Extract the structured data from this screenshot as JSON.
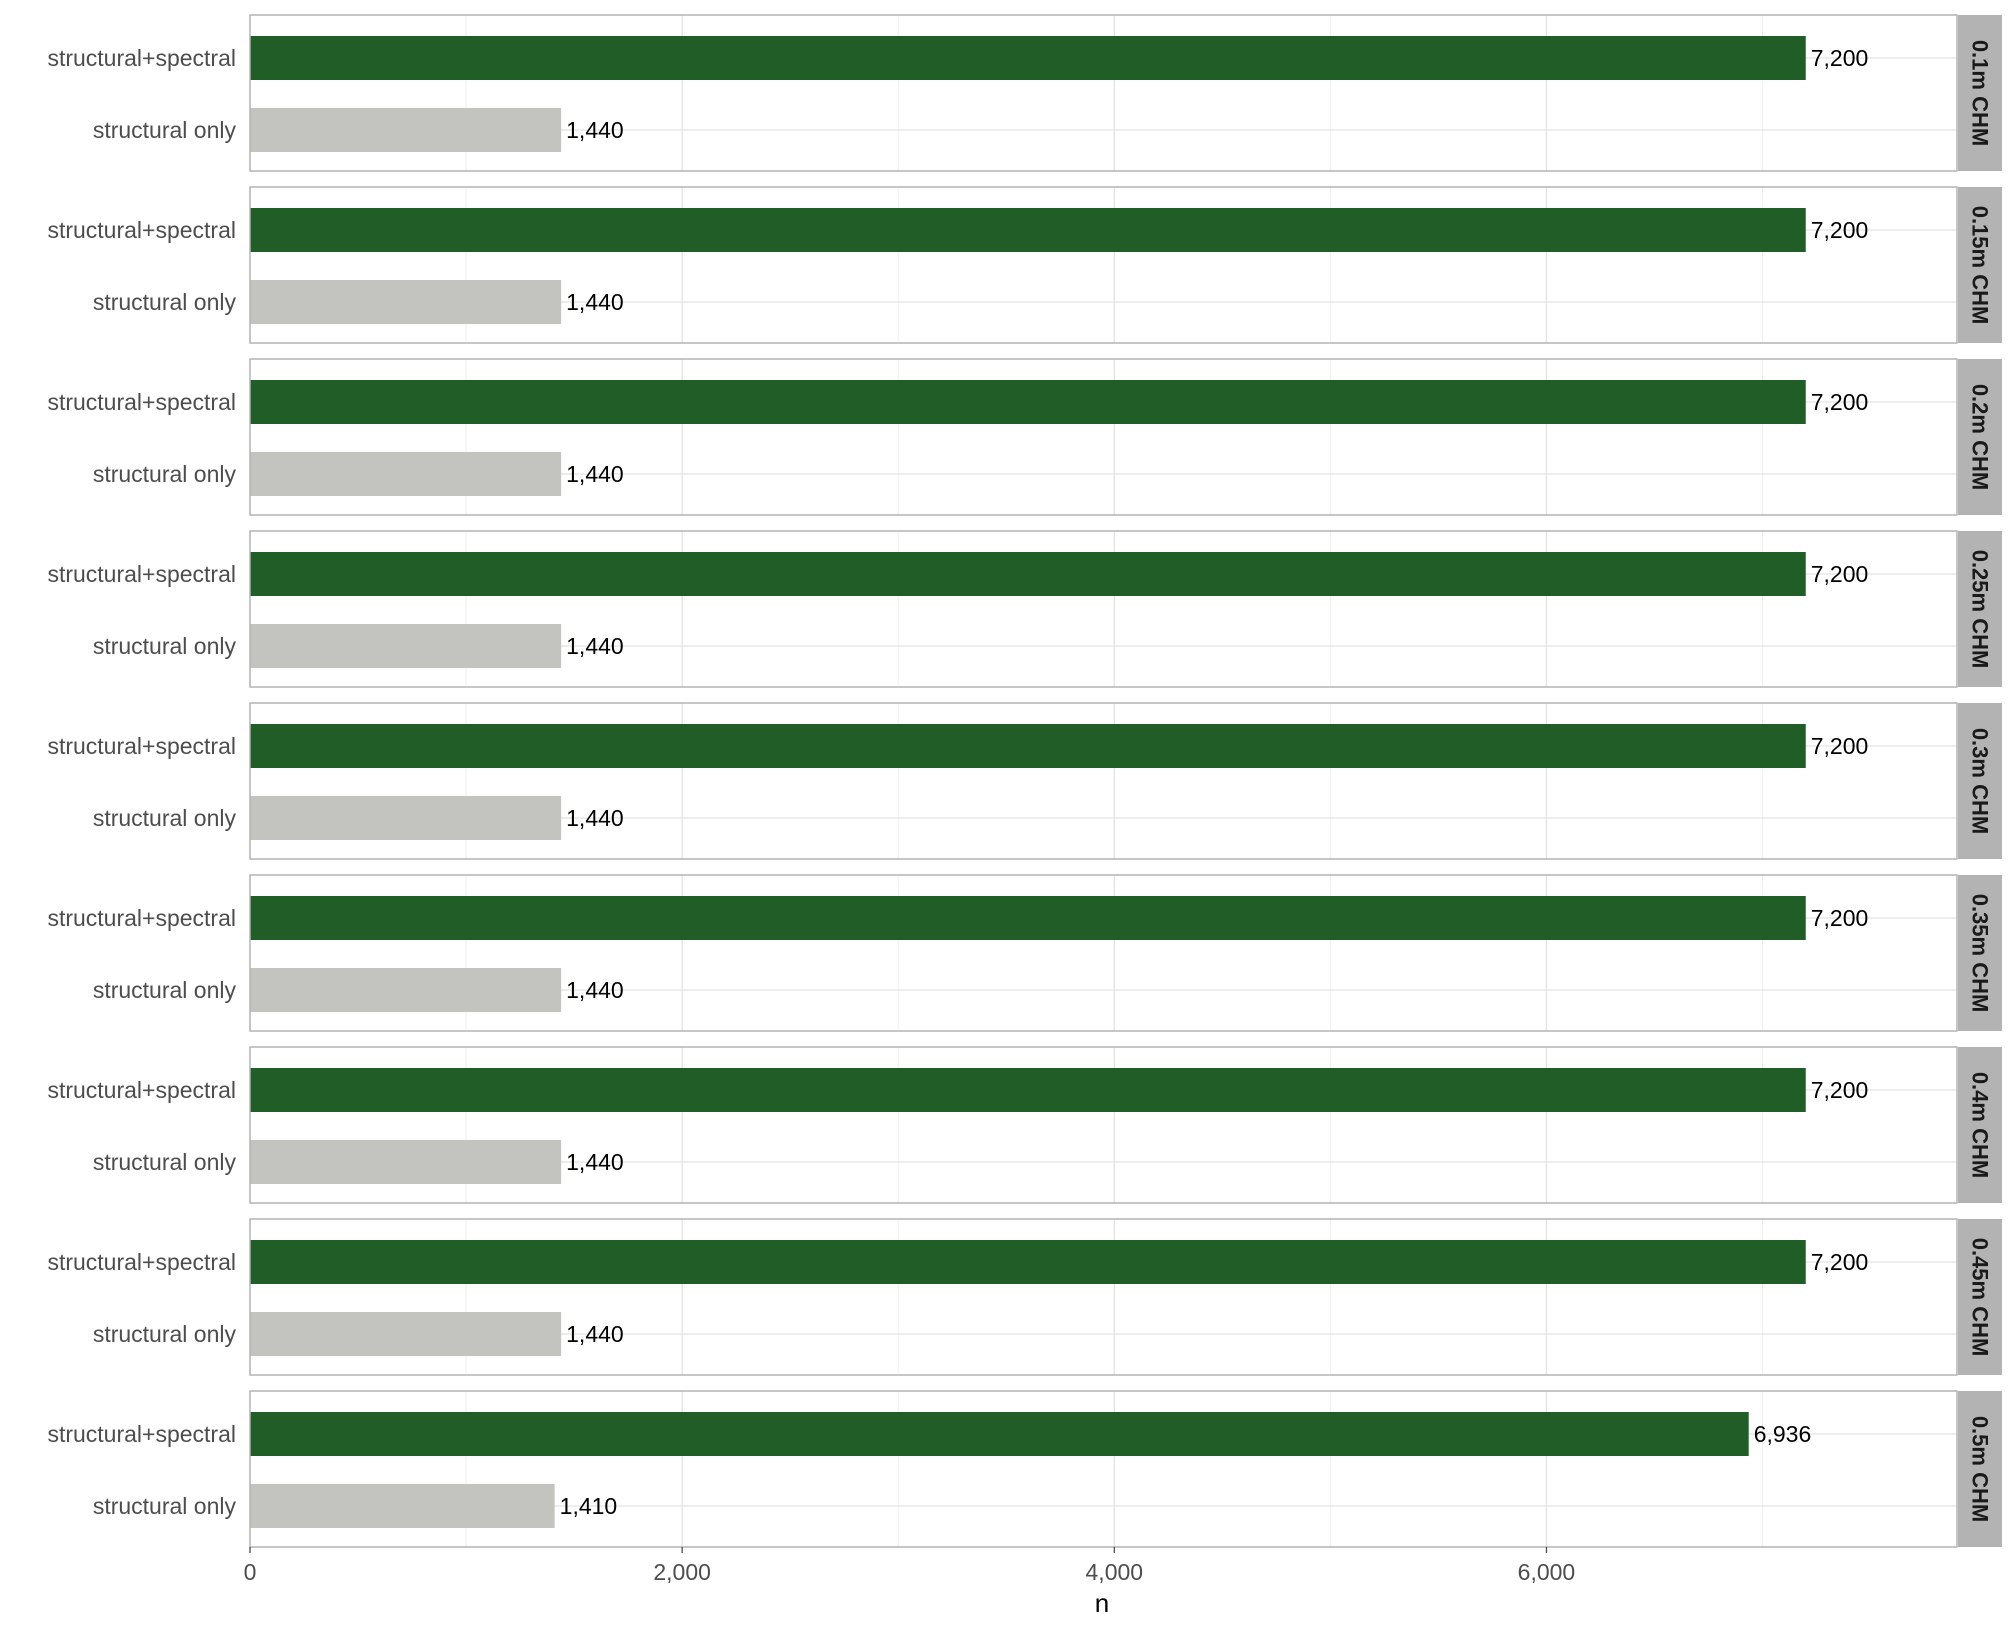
{
  "chart_data": {
    "type": "bar",
    "orientation": "horizontal",
    "xlabel": "n",
    "ylabel": "",
    "xlim": [
      0,
      7900
    ],
    "x_ticks": [
      0,
      2000,
      4000,
      6000
    ],
    "x_tick_labels": [
      "0",
      "2,000",
      "4,000",
      "6,000"
    ],
    "grid": true,
    "categories": [
      "structural+spectral",
      "structural only"
    ],
    "colors": {
      "structural+spectral": "#215e27",
      "structural only": "#c3c4c0"
    },
    "facets": [
      {
        "label": "0.1m CHM",
        "values": [
          7200,
          1440
        ],
        "value_labels": [
          "7,200",
          "1,440"
        ]
      },
      {
        "label": "0.15m CHM",
        "values": [
          7200,
          1440
        ],
        "value_labels": [
          "7,200",
          "1,440"
        ]
      },
      {
        "label": "0.2m CHM",
        "values": [
          7200,
          1440
        ],
        "value_labels": [
          "7,200",
          "1,440"
        ]
      },
      {
        "label": "0.25m CHM",
        "values": [
          7200,
          1440
        ],
        "value_labels": [
          "7,200",
          "1,440"
        ]
      },
      {
        "label": "0.3m CHM",
        "values": [
          7200,
          1440
        ],
        "value_labels": [
          "7,200",
          "1,440"
        ]
      },
      {
        "label": "0.35m CHM",
        "values": [
          7200,
          1440
        ],
        "value_labels": [
          "7,200",
          "1,440"
        ]
      },
      {
        "label": "0.4m CHM",
        "values": [
          7200,
          1440
        ],
        "value_labels": [
          "7,200",
          "1,440"
        ]
      },
      {
        "label": "0.45m CHM",
        "values": [
          7200,
          1440
        ],
        "value_labels": [
          "7,200",
          "1,440"
        ]
      },
      {
        "label": "0.5m CHM",
        "values": [
          6936,
          1410
        ],
        "value_labels": [
          "6,936",
          "1,410"
        ]
      }
    ]
  }
}
